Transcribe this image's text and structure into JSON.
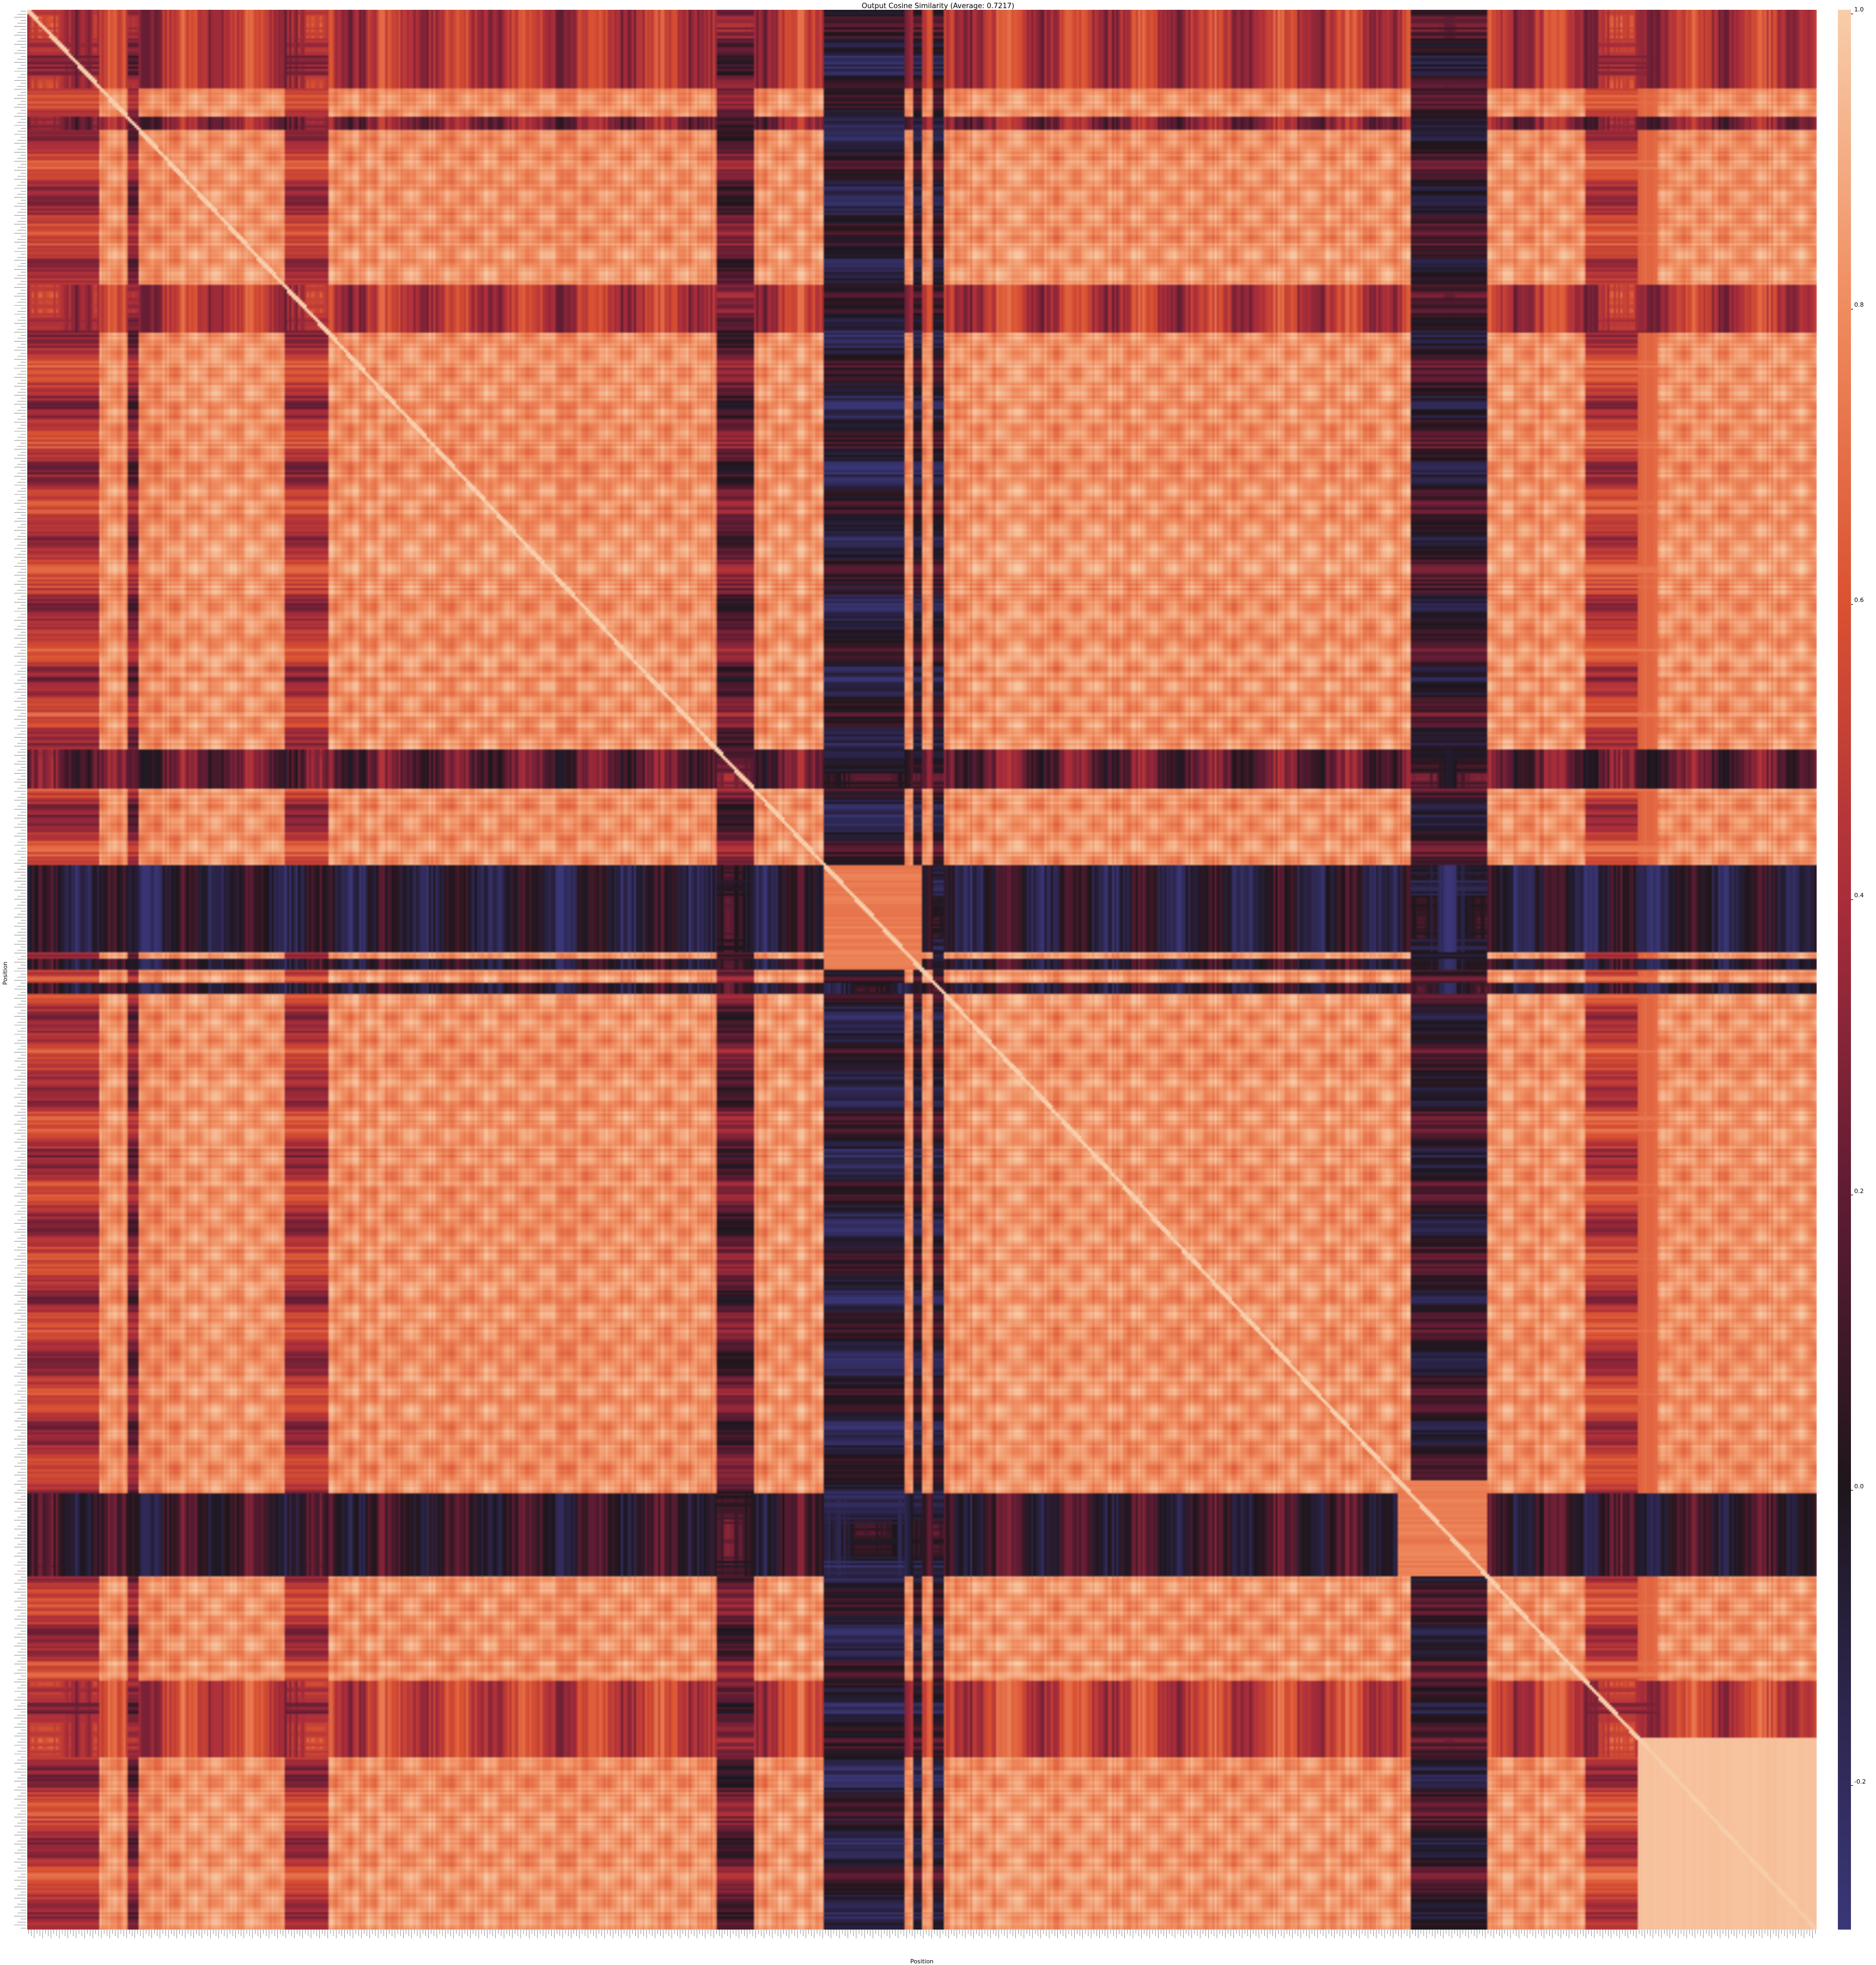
{
  "chart_data": {
    "type": "heatmap",
    "title": "Output Cosine Similarity (Average: 0.7217)",
    "xlabel": "Position",
    "ylabel": "Position",
    "colorbar": {
      "range": [
        -0.3,
        1.0
      ],
      "ticks": [
        "1.0",
        "0.8",
        "0.6",
        "0.4",
        "0.2",
        "0.0",
        "-0.2"
      ],
      "tick_values": [
        1.0,
        0.8,
        0.6,
        0.4,
        0.2,
        0.0,
        -0.2
      ],
      "colormap": "icefire-like (dark blue -> black -> red -> orange -> peach)"
    },
    "matrix": {
      "n": 640,
      "average": 0.7217,
      "diagonal_value": 1.0,
      "base_similarity": 0.82,
      "low_similarity_bands": [
        {
          "start": 0.0,
          "end": 0.04,
          "level": 0.45
        },
        {
          "start": 0.055,
          "end": 0.062,
          "level": 0.3
        },
        {
          "start": 0.143,
          "end": 0.168,
          "level": 0.45
        },
        {
          "start": 0.385,
          "end": 0.405,
          "level": 0.2
        },
        {
          "start": 0.445,
          "end": 0.49,
          "level": -0.05
        },
        {
          "start": 0.494,
          "end": 0.499,
          "level": 0.0
        },
        {
          "start": 0.506,
          "end": 0.512,
          "level": 0.0
        },
        {
          "start": 0.772,
          "end": 0.815,
          "level": 0.05
        },
        {
          "start": 0.87,
          "end": 0.91,
          "level": 0.5
        }
      ],
      "block_bands": [
        {
          "start": 0.445,
          "end": 0.5,
          "level": -0.1
        },
        {
          "start": 0.765,
          "end": 0.815,
          "level": 0.25
        }
      ],
      "high_block": {
        "start": 0.9,
        "end": 1.0,
        "level": 0.97
      }
    },
    "tick_labels_note": "dense per-position token labels along both axes"
  }
}
